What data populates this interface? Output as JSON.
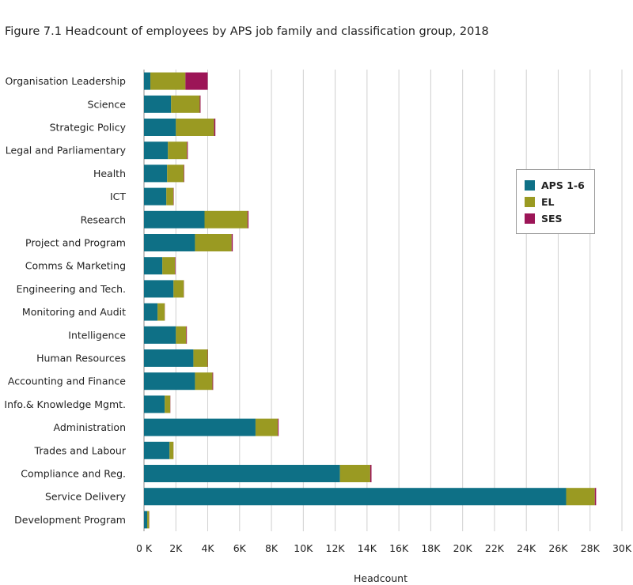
{
  "chart_data": {
    "type": "bar",
    "orientation": "horizontal",
    "stacked": true,
    "title": "Figure 7.1 Headcount of employees by APS job family and classification group, 2018",
    "xlabel": "Headcount",
    "ylabel": "",
    "xlim": [
      0,
      30000
    ],
    "grid": true,
    "legend_position": "right",
    "categories": [
      "Organisation Leadership",
      "Science",
      "Strategic Policy",
      "Legal and Parliamentary",
      "Health",
      "ICT",
      "Research",
      "Project and Program",
      "Comms & Marketing",
      "Engineering and Tech.",
      "Monitoring and Audit",
      "Intelligence",
      "Human Resources",
      "Accounting and Finance",
      "Info.& Knowledge Mgmt.",
      "Administration",
      "Trades and Labour",
      "Compliance and Reg.",
      "Service Delivery",
      "Development Program"
    ],
    "series": [
      {
        "name": "APS 1-6",
        "color": "#0e7086",
        "values": [
          400,
          1700,
          2000,
          1500,
          1450,
          1400,
          3800,
          3200,
          1150,
          1850,
          850,
          2000,
          3100,
          3200,
          1300,
          7000,
          1600,
          12300,
          26500,
          200
        ]
      },
      {
        "name": "EL",
        "color": "#9a9a22",
        "values": [
          2200,
          1800,
          2400,
          1200,
          1050,
          450,
          2700,
          2300,
          800,
          650,
          450,
          650,
          900,
          1100,
          350,
          1400,
          250,
          1900,
          1800,
          120
        ]
      },
      {
        "name": "SES",
        "color": "#9c1557",
        "values": [
          1400,
          50,
          80,
          50,
          30,
          20,
          60,
          70,
          30,
          10,
          10,
          40,
          20,
          40,
          10,
          50,
          5,
          80,
          80,
          10
        ]
      }
    ],
    "ticks": [
      {
        "value": 0,
        "label": "0 K"
      },
      {
        "value": 2000,
        "label": "2K"
      },
      {
        "value": 4000,
        "label": "4K"
      },
      {
        "value": 6000,
        "label": "6K"
      },
      {
        "value": 8000,
        "label": "8K"
      },
      {
        "value": 10000,
        "label": "10K"
      },
      {
        "value": 12000,
        "label": "12K"
      },
      {
        "value": 14000,
        "label": "14K"
      },
      {
        "value": 16000,
        "label": "16K"
      },
      {
        "value": 18000,
        "label": "18K"
      },
      {
        "value": 20000,
        "label": "20K"
      },
      {
        "value": 22000,
        "label": "22K"
      },
      {
        "value": 24000,
        "label": "24K"
      },
      {
        "value": 26000,
        "label": "26K"
      },
      {
        "value": 28000,
        "label": "28K"
      },
      {
        "value": 30000,
        "label": "30K"
      }
    ]
  }
}
